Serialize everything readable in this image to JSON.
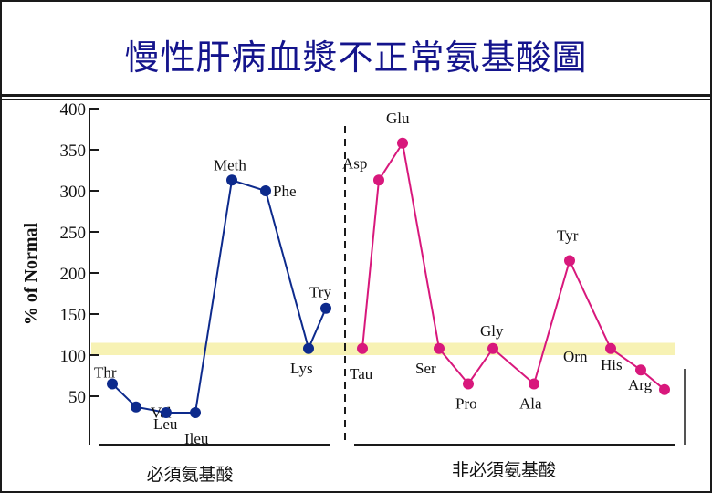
{
  "title": "慢性肝病血漿不正常氨基酸圖",
  "chart_data": {
    "type": "line",
    "ylabel": "% of Normal",
    "ylim": [
      0,
      400
    ],
    "yticks": [
      50,
      100,
      150,
      200,
      250,
      300,
      350,
      400
    ],
    "normal_band": [
      100,
      115
    ],
    "series": [
      {
        "group_label": "必須氨基酸",
        "color": "#0d2a8c",
        "points": [
          {
            "label": "Thr",
            "y": 65
          },
          {
            "label": "Val",
            "y": 37
          },
          {
            "label": "Leu",
            "y": 30
          },
          {
            "label": "Ileu",
            "y": 30
          },
          {
            "label": "Meth",
            "y": 313
          },
          {
            "label": "Phe",
            "y": 300
          },
          {
            "label": "Lys",
            "y": 108
          },
          {
            "label": "Try",
            "y": 157
          }
        ]
      },
      {
        "group_label": "非必須氨基酸",
        "color": "#d8187c",
        "points": [
          {
            "label": "Tau",
            "y": 108
          },
          {
            "label": "Asp",
            "y": 313
          },
          {
            "label": "Glu",
            "y": 358
          },
          {
            "label": "Ser",
            "y": 108
          },
          {
            "label": "Pro",
            "y": 65
          },
          {
            "label": "Gly",
            "y": 108
          },
          {
            "label": "Ala",
            "y": 65
          },
          {
            "label": "Tyr",
            "y": 215
          },
          {
            "label": "Orn",
            "y": 108
          },
          {
            "label": "His",
            "y": 82
          },
          {
            "label": "Arg",
            "y": 58
          }
        ]
      }
    ]
  }
}
